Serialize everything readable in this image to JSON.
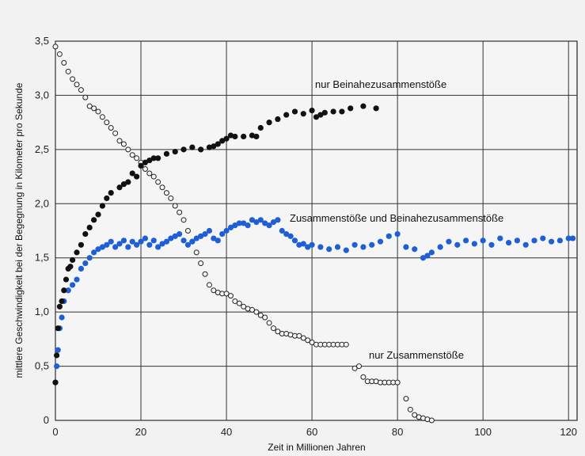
{
  "chart_data": {
    "type": "scatter",
    "title": "",
    "xlabel": "Zeit in Millionen Jahren",
    "ylabel": "mittlere Geschwindigkeit bei der Begegnung in Kilometer pro Sekunde",
    "xlim": [
      0,
      122
    ],
    "ylim": [
      0,
      3.5
    ],
    "grid": true,
    "x_ticks": [
      "0",
      "20",
      "40",
      "60",
      "80",
      "100",
      "120"
    ],
    "y_ticks": [
      "0",
      "0,5",
      "1,0",
      "1,5",
      "2,0",
      "2,5",
      "3,0",
      "3,5"
    ],
    "colors": {
      "beinahe": "#111111",
      "combined": "#1f5fd6",
      "zusammen_stroke": "#222222",
      "background": "#f2f2f2",
      "grid": "#333333"
    },
    "annotations": [
      {
        "text": "nur Beinahezusammenstöße",
        "series": "beinahe"
      },
      {
        "text": "Zusammenstöße und Beinahezusammenstöße",
        "series": "combined"
      },
      {
        "text": "nur Zusammenstöße",
        "series": "zusammen"
      }
    ],
    "series": [
      {
        "key": "beinahe",
        "marker": "filled",
        "x": [
          0,
          0.3,
          0.6,
          1,
          1.5,
          2,
          2.5,
          3,
          3.5,
          4,
          5,
          6,
          7,
          8,
          9,
          10,
          11,
          12,
          13,
          15,
          16,
          17,
          18,
          19,
          20,
          21,
          22,
          23,
          24,
          26,
          28,
          30,
          32,
          34,
          36,
          37,
          38,
          39,
          40,
          41,
          42,
          44,
          46,
          47,
          48,
          50,
          52,
          54,
          56,
          58,
          60,
          61,
          62,
          63,
          65,
          67,
          69,
          72,
          75
        ],
        "y": [
          0.35,
          0.6,
          0.85,
          1.05,
          1.1,
          1.2,
          1.3,
          1.4,
          1.42,
          1.48,
          1.55,
          1.62,
          1.72,
          1.78,
          1.85,
          1.9,
          1.98,
          2.05,
          2.1,
          2.15,
          2.18,
          2.2,
          2.28,
          2.25,
          2.35,
          2.38,
          2.4,
          2.42,
          2.42,
          2.46,
          2.48,
          2.5,
          2.52,
          2.5,
          2.52,
          2.53,
          2.55,
          2.58,
          2.6,
          2.63,
          2.62,
          2.62,
          2.63,
          2.62,
          2.7,
          2.75,
          2.78,
          2.82,
          2.85,
          2.83,
          2.86,
          2.8,
          2.82,
          2.84,
          2.85,
          2.85,
          2.88,
          2.9,
          2.88
        ]
      },
      {
        "key": "combined",
        "marker": "filled",
        "x": [
          0,
          0.3,
          0.6,
          1,
          1.5,
          2,
          3,
          4,
          5,
          6,
          7,
          8,
          9,
          10,
          11,
          12,
          13,
          14,
          15,
          16,
          17,
          18,
          19,
          20,
          21,
          22,
          23,
          24,
          25,
          26,
          27,
          28,
          29,
          30,
          31,
          32,
          33,
          34,
          35,
          36,
          37,
          38,
          39,
          40,
          41,
          42,
          43,
          44,
          45,
          46,
          47,
          48,
          49,
          50,
          51,
          52,
          53,
          54,
          55,
          56,
          57,
          58,
          59,
          60,
          62,
          64,
          66,
          68,
          70,
          72,
          74,
          76,
          78,
          80,
          82,
          84,
          86,
          87,
          88,
          90,
          92,
          94,
          96,
          98,
          100,
          102,
          104,
          106,
          108,
          110,
          112,
          114,
          116,
          118,
          120,
          121
        ],
        "y": [
          0.35,
          0.5,
          0.65,
          0.85,
          0.95,
          1.1,
          1.2,
          1.25,
          1.3,
          1.4,
          1.45,
          1.5,
          1.55,
          1.58,
          1.6,
          1.62,
          1.65,
          1.6,
          1.63,
          1.66,
          1.6,
          1.65,
          1.62,
          1.65,
          1.68,
          1.62,
          1.66,
          1.6,
          1.63,
          1.65,
          1.68,
          1.7,
          1.72,
          1.66,
          1.62,
          1.65,
          1.68,
          1.7,
          1.72,
          1.75,
          1.68,
          1.66,
          1.72,
          1.75,
          1.78,
          1.8,
          1.82,
          1.82,
          1.8,
          1.85,
          1.83,
          1.85,
          1.82,
          1.8,
          1.83,
          1.85,
          1.75,
          1.72,
          1.7,
          1.66,
          1.62,
          1.63,
          1.6,
          1.62,
          1.6,
          1.58,
          1.6,
          1.57,
          1.62,
          1.6,
          1.62,
          1.65,
          1.7,
          1.72,
          1.6,
          1.58,
          1.5,
          1.52,
          1.55,
          1.6,
          1.65,
          1.62,
          1.66,
          1.63,
          1.66,
          1.62,
          1.68,
          1.64,
          1.66,
          1.62,
          1.66,
          1.68,
          1.65,
          1.66,
          1.68,
          1.68
        ]
      },
      {
        "key": "zusammen",
        "marker": "hollow",
        "x": [
          0,
          1,
          2,
          3,
          4,
          5,
          6,
          7,
          8,
          9,
          10,
          11,
          12,
          13,
          14,
          15,
          16,
          17,
          18,
          19,
          20,
          21,
          22,
          23,
          24,
          25,
          26,
          27,
          28,
          29,
          30,
          31,
          32,
          33,
          34,
          35,
          36,
          37,
          38,
          39,
          40,
          41,
          42,
          43,
          44,
          45,
          46,
          47,
          48,
          49,
          50,
          51,
          52,
          53,
          54,
          55,
          56,
          57,
          58,
          59,
          60,
          61,
          62,
          63,
          64,
          65,
          66,
          67,
          68,
          70,
          71,
          72,
          73,
          74,
          75,
          76,
          77,
          78,
          79,
          80,
          82,
          83,
          84,
          85,
          86,
          87,
          88
        ],
        "y": [
          3.45,
          3.38,
          3.3,
          3.22,
          3.15,
          3.1,
          3.05,
          2.98,
          2.9,
          2.88,
          2.85,
          2.8,
          2.75,
          2.7,
          2.65,
          2.58,
          2.55,
          2.5,
          2.45,
          2.42,
          2.38,
          2.32,
          2.28,
          2.25,
          2.2,
          2.15,
          2.1,
          2.05,
          1.98,
          1.92,
          1.85,
          1.75,
          1.65,
          1.55,
          1.45,
          1.35,
          1.25,
          1.2,
          1.18,
          1.17,
          1.17,
          1.15,
          1.1,
          1.08,
          1.05,
          1.03,
          1.02,
          1.0,
          0.97,
          0.95,
          0.9,
          0.85,
          0.82,
          0.8,
          0.8,
          0.79,
          0.78,
          0.78,
          0.76,
          0.74,
          0.72,
          0.7,
          0.7,
          0.7,
          0.7,
          0.7,
          0.7,
          0.7,
          0.7,
          0.48,
          0.5,
          0.4,
          0.36,
          0.36,
          0.36,
          0.35,
          0.35,
          0.35,
          0.35,
          0.35,
          0.2,
          0.1,
          0.05,
          0.03,
          0.02,
          0.01,
          0.0
        ]
      }
    ]
  }
}
